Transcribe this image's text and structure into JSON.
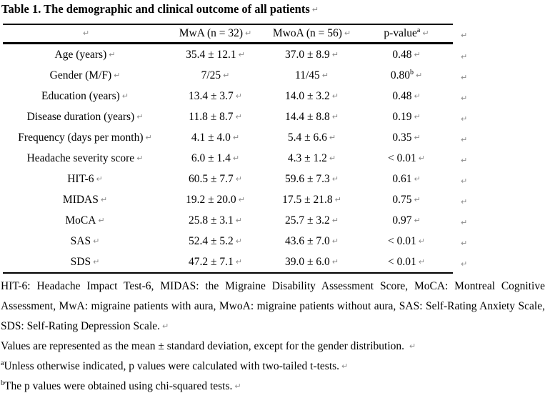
{
  "title": "Table 1. The demographic and clinical outcome of all patients",
  "marks": {
    "paragraph": "↵"
  },
  "table": {
    "columns": [
      "",
      "MwA (n = 32)",
      "MwoA (n = 56)",
      "p-value"
    ],
    "p_superscript": "a",
    "rows": [
      {
        "label": "Age (years)",
        "mwa": "35.4 ± 12.1",
        "mwoa": "37.0 ± 8.9",
        "p": "0.48",
        "p_sup": ""
      },
      {
        "label": "Gender (M/F)",
        "mwa": "7/25",
        "mwoa": "11/45",
        "p": "0.80",
        "p_sup": "b"
      },
      {
        "label": "Education (years)",
        "mwa": "13.4 ± 3.7",
        "mwoa": "14.0 ± 3.2",
        "p": "0.48",
        "p_sup": ""
      },
      {
        "label": "Disease duration (years)",
        "mwa": "11.8 ± 8.7",
        "mwoa": "14.4 ± 8.8",
        "p": "0.19",
        "p_sup": ""
      },
      {
        "label": "Frequency (days per month)",
        "mwa": "4.1 ± 4.0",
        "mwoa": "5.4 ± 6.6",
        "p": "0.35",
        "p_sup": ""
      },
      {
        "label": "Headache severity score",
        "mwa": "6.0 ± 1.4",
        "mwoa": "4.3 ± 1.2",
        "p": "< 0.01",
        "p_sup": ""
      },
      {
        "label": "HIT-6",
        "mwa": "60.5 ± 7.7",
        "mwoa": "59.6 ± 7.3",
        "p": "0.61",
        "p_sup": ""
      },
      {
        "label": "MIDAS",
        "mwa": "19.2 ± 20.0",
        "mwoa": "17.5 ± 21.8",
        "p": "0.75",
        "p_sup": ""
      },
      {
        "label": "MoCA",
        "mwa": "25.8 ± 3.1",
        "mwoa": "25.7 ± 3.2",
        "p": "0.97",
        "p_sup": ""
      },
      {
        "label": "SAS",
        "mwa": "52.4 ± 5.2",
        "mwoa": "43.6 ± 7.0",
        "p": "< 0.01",
        "p_sup": ""
      },
      {
        "label": "SDS",
        "mwa": "47.2 ± 7.1",
        "mwoa": "39.0 ± 6.0",
        "p": "< 0.01",
        "p_sup": ""
      }
    ]
  },
  "footnotes": {
    "abbreviations": "HIT-6: Headache Impact Test-6, MIDAS: the Migraine Disability Assessment Score, MoCA: Montreal Cognitive Assessment, MwA: migraine patients with aura, MwoA: migraine patients without aura, SAS: Self-Rating Anxiety Scale, SDS: Self-Rating Depression Scale.",
    "values_note": "Values are represented as the mean ± standard deviation, except for the gender distribution. ",
    "note_a_sup": "a",
    "note_a": "Unless otherwise indicated, p values were calculated with two-tailed t-tests.",
    "note_b_sup": "b",
    "note_b": "The p values were obtained using chi-squared tests."
  }
}
